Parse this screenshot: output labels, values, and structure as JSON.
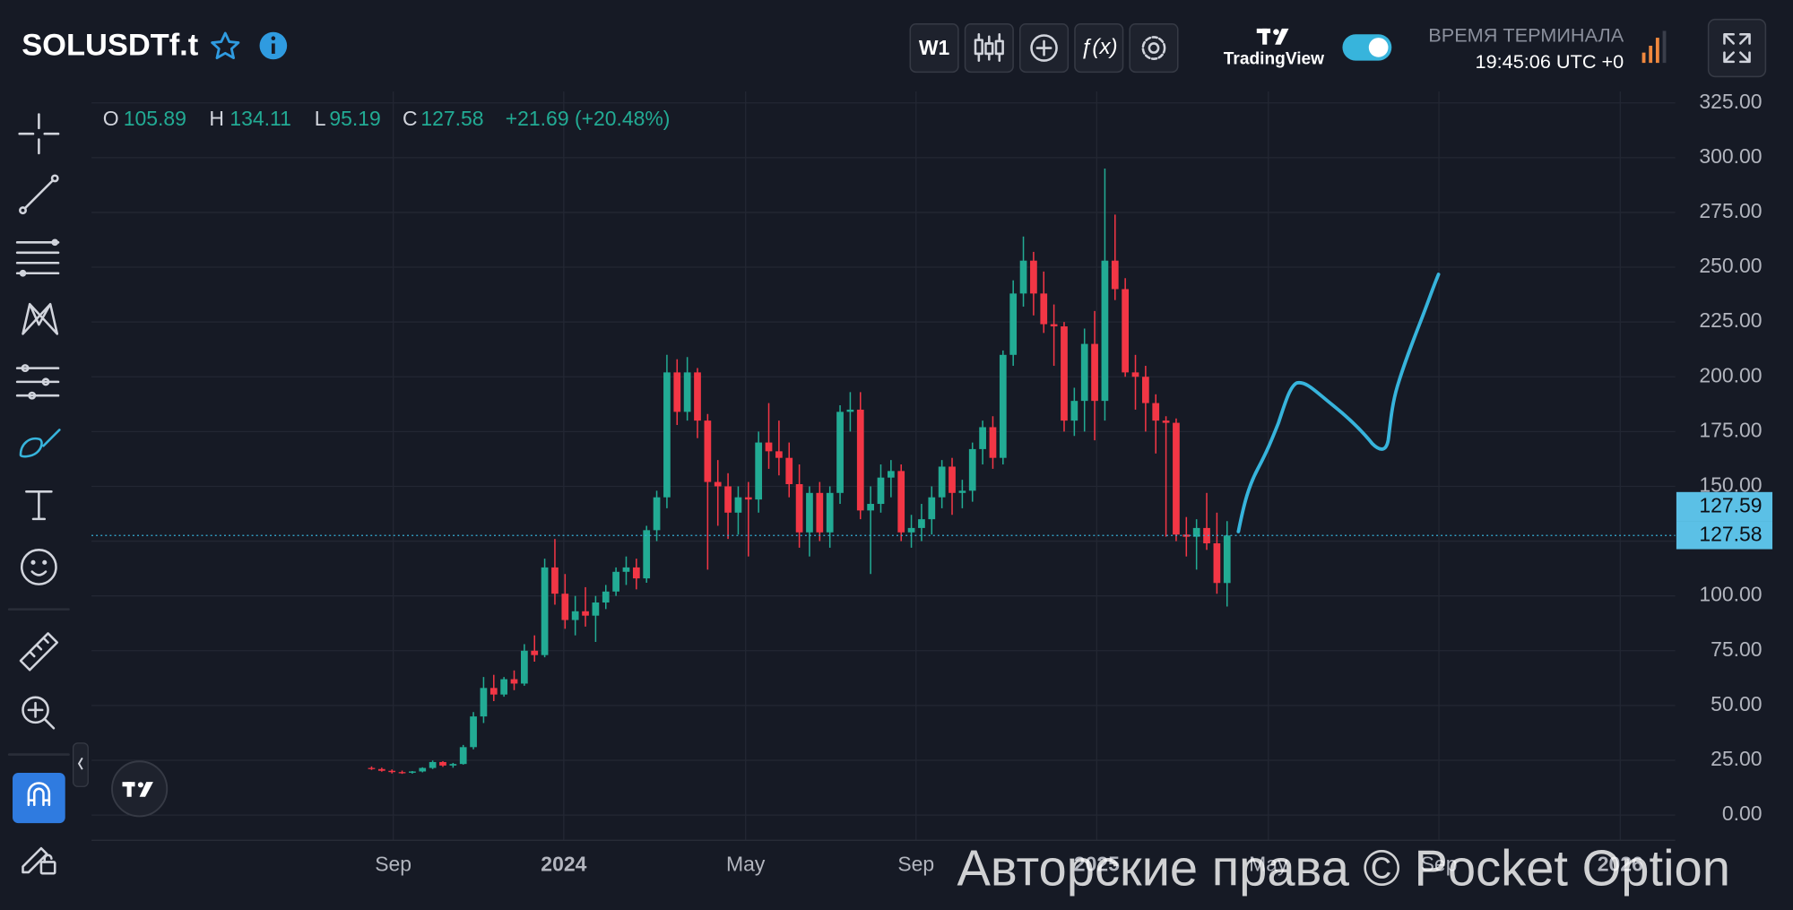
{
  "header": {
    "symbol": "SOLUSDTf.t",
    "interval": "W1",
    "brand": "TradingView",
    "clock_label": "ВРЕМЯ ТЕРМИНАЛА",
    "clock": "19:45:06 UTC +0"
  },
  "chart_data": {
    "type": "candlestick",
    "categories": [
      null,
      null,
      null,
      null,
      null,
      null,
      null,
      null,
      null,
      null,
      null,
      null,
      null,
      null,
      null,
      null,
      null,
      null,
      null,
      null,
      null,
      null,
      null,
      null,
      null,
      null,
      null,
      null,
      null,
      null,
      null,
      null,
      null,
      null,
      null,
      null,
      null,
      null,
      null,
      null,
      null,
      null,
      null,
      null,
      null,
      null,
      null,
      null,
      null,
      null,
      null,
      null,
      null,
      null,
      null,
      null,
      null,
      null,
      null,
      null,
      null,
      null,
      null,
      null,
      null,
      null,
      null,
      null,
      null,
      null,
      null,
      null,
      null,
      null,
      null,
      null,
      null,
      null,
      null,
      null,
      null,
      null,
      null,
      null,
      null
    ],
    "open": [
      21.5,
      21,
      20.2,
      19.6,
      19.3,
      19.9,
      21.5,
      24.2,
      22.6,
      23.3,
      31,
      45,
      58,
      55,
      62,
      60,
      75,
      73,
      113,
      101,
      89,
      93,
      91,
      97,
      102,
      111,
      113,
      108,
      130,
      145,
      202,
      184,
      202,
      180,
      152,
      150,
      138,
      145,
      144,
      170,
      166,
      163,
      151,
      129,
      147,
      129,
      147,
      184,
      185,
      139,
      142,
      154,
      157,
      129,
      131,
      135,
      145,
      159,
      147,
      148,
      167,
      177,
      163,
      210,
      238,
      253,
      238,
      224,
      223,
      180,
      189,
      215,
      189,
      253,
      240,
      202,
      200,
      188,
      180,
      179,
      128,
      127,
      131,
      124,
      105.89
    ],
    "high": [
      22.2,
      21.6,
      20.8,
      20.3,
      20.1,
      21.8,
      24.9,
      24.6,
      23.8,
      32,
      47,
      63,
      64,
      63,
      66,
      78,
      82,
      117,
      126,
      110,
      100,
      104,
      100,
      105,
      113,
      118,
      117,
      132,
      148,
      210,
      208,
      209,
      204,
      183,
      162,
      156,
      150,
      152,
      175,
      188,
      180,
      170,
      160,
      150,
      152,
      150,
      187,
      193,
      193,
      150,
      160,
      162,
      160,
      137,
      142,
      150,
      162,
      163,
      153,
      170,
      180,
      182,
      212,
      244,
      264,
      257,
      248,
      233,
      225,
      195,
      222,
      230,
      295,
      274,
      245,
      210,
      205,
      192,
      182,
      181,
      136,
      135,
      147,
      138,
      134.11
    ],
    "low": [
      20.6,
      19.8,
      19,
      18.8,
      18.9,
      19.5,
      21,
      22,
      21.6,
      23,
      30,
      42,
      52,
      54,
      57,
      59,
      70,
      72,
      96,
      85,
      82,
      86,
      79,
      94,
      100,
      105,
      103,
      106,
      125,
      140,
      178,
      180,
      172,
      112,
      132,
      126,
      128,
      118,
      138,
      158,
      155,
      145,
      122,
      118,
      125,
      122,
      142,
      175,
      135,
      110,
      138,
      145,
      125,
      122,
      125,
      128,
      140,
      137,
      140,
      143,
      160,
      158,
      160,
      205,
      232,
      228,
      220,
      205,
      175,
      173,
      175,
      171,
      180,
      235,
      200,
      185,
      175,
      165,
      127,
      125,
      118,
      112,
      121,
      101,
      95.19
    ],
    "close": [
      21,
      20.2,
      19.6,
      19.3,
      19.9,
      21.5,
      24.2,
      22.6,
      23.3,
      31,
      45,
      58,
      55,
      62,
      60,
      75,
      73,
      113,
      101,
      89,
      93,
      91,
      97,
      102,
      111,
      113,
      108,
      130,
      145,
      202,
      184,
      202,
      180,
      152,
      150,
      138,
      145,
      144,
      170,
      166,
      163,
      151,
      129,
      147,
      129,
      147,
      184,
      185,
      139,
      142,
      154,
      157,
      129,
      131,
      135,
      145,
      159,
      147,
      148,
      167,
      177,
      163,
      210,
      238,
      253,
      238,
      224,
      223,
      180,
      189,
      215,
      189,
      253,
      240,
      202,
      200,
      188,
      180,
      179,
      128,
      127,
      131,
      124,
      105.9,
      127.58
    ],
    "colors": {
      "up": "#22ab94",
      "down": "#f23645"
    },
    "ylim": [
      -11.5,
      330.2
    ],
    "yticks": [
      {
        "value": 0,
        "label": "0.00"
      },
      {
        "value": 25,
        "label": "25.00"
      },
      {
        "value": 50,
        "label": "50.00"
      },
      {
        "value": 75,
        "label": "75.00"
      },
      {
        "value": 100,
        "label": "100.00"
      },
      {
        "value": 125,
        "label": "125.00"
      },
      {
        "value": 150,
        "label": "150.00"
      },
      {
        "value": 175,
        "label": "175.00"
      },
      {
        "value": 200,
        "label": "200.00"
      },
      {
        "value": 225,
        "label": "225.00"
      },
      {
        "value": 250,
        "label": "250.00"
      },
      {
        "value": 275,
        "label": "275.00"
      },
      {
        "value": 300,
        "label": "300.00"
      },
      {
        "value": 325,
        "label": "325.00"
      }
    ],
    "xlim": [
      -27.5,
      128
    ],
    "xticks": [
      {
        "value": 2.13,
        "label": "Sep"
      },
      {
        "value": 18.87,
        "label": "2024"
      },
      {
        "value": 36.73,
        "label": "May"
      },
      {
        "value": 53.46,
        "label": "Sep"
      },
      {
        "value": 71.2,
        "label": "2025"
      },
      {
        "value": 88.05,
        "label": "May"
      },
      {
        "value": 104.8,
        "label": "Sep"
      },
      {
        "value": 122.6,
        "label": "2026"
      }
    ],
    "grid": true,
    "legend": {
      "labels": [
        "O",
        "H",
        "L",
        "C"
      ],
      "values": [
        105.89,
        134.11,
        95.19,
        127.58
      ],
      "change": "+21.69 (+20.48%)"
    },
    "price_marks": [
      127.59,
      127.58
    ]
  },
  "watermark": "Авторские права © Pocket Option"
}
